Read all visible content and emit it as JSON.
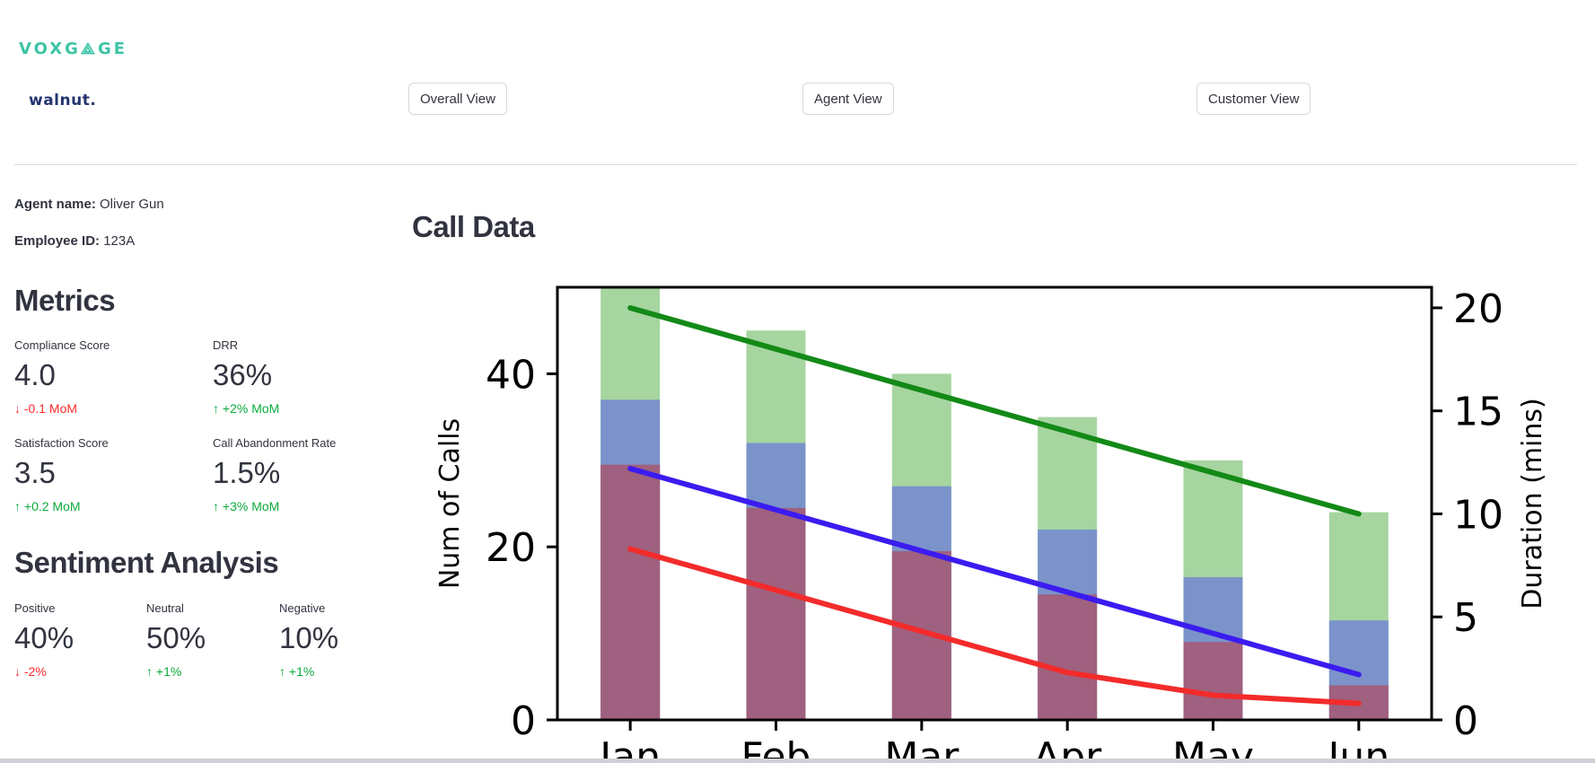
{
  "brand": {
    "logo_primary": "VOXG⟁GE",
    "logo_secondary": "walnut."
  },
  "nav": {
    "buttons": [
      "Overall View",
      "Agent View",
      "Customer View"
    ]
  },
  "agent": {
    "name_label": "Agent name:",
    "name_value": "Oliver Gun",
    "id_label": "Employee ID:",
    "id_value": "123A"
  },
  "metrics": {
    "title": "Metrics",
    "items": [
      {
        "label": "Compliance Score",
        "value": "4.0",
        "delta": "-0.1 MoM",
        "direction": "down"
      },
      {
        "label": "DRR",
        "value": "36%",
        "delta": "+2% MoM",
        "direction": "up"
      },
      {
        "label": "Satisfaction Score",
        "value": "3.5",
        "delta": "+0.2 MoM",
        "direction": "up"
      },
      {
        "label": "Call Abandonment Rate",
        "value": "1.5%",
        "delta": "+3% MoM",
        "direction": "up"
      }
    ]
  },
  "sentiment": {
    "title": "Sentiment Analysis",
    "items": [
      {
        "label": "Positive",
        "value": "40%",
        "delta": "-2%",
        "direction": "down"
      },
      {
        "label": "Neutral",
        "value": "50%",
        "delta": "+1%",
        "direction": "up"
      },
      {
        "label": "Negative",
        "value": "10%",
        "delta": "+1%",
        "direction": "up"
      }
    ]
  },
  "colors": {
    "up": "#09ab3b",
    "down": "#ff2b2b"
  },
  "chart_section_title": "Call Data",
  "chart_data": {
    "type": "bar",
    "categories": [
      "Jan",
      "Feb",
      "Mar",
      "Apr",
      "May",
      "Jun"
    ],
    "ylabel": "Num of Calls",
    "y2label": "Duration (mins)",
    "ylim": [
      0,
      50
    ],
    "y2lim": [
      0,
      21
    ],
    "yticks": [
      0,
      20,
      40
    ],
    "y2ticks": [
      0,
      5,
      10,
      15,
      20
    ],
    "stacked_bars": [
      {
        "color": "#a6d5a0",
        "values": [
          50,
          45,
          40,
          35,
          30,
          24
        ]
      },
      {
        "color": "#7b93ca",
        "values": [
          37,
          32,
          27,
          22,
          16.5,
          11.5
        ]
      },
      {
        "color": "#a0607f",
        "values": [
          29.5,
          24.5,
          19.5,
          14.5,
          9,
          4
        ]
      }
    ],
    "lines": [
      {
        "color": "#138a17",
        "values": [
          20,
          18,
          16,
          14,
          12,
          10
        ]
      },
      {
        "color": "#3b1cf0",
        "values": [
          12.2,
          10.2,
          8.2,
          6.2,
          4.2,
          2.2
        ]
      },
      {
        "color": "#f32b2b",
        "values": [
          8.3,
          6.3,
          4.3,
          2.3,
          1.2,
          0.8
        ]
      }
    ]
  }
}
